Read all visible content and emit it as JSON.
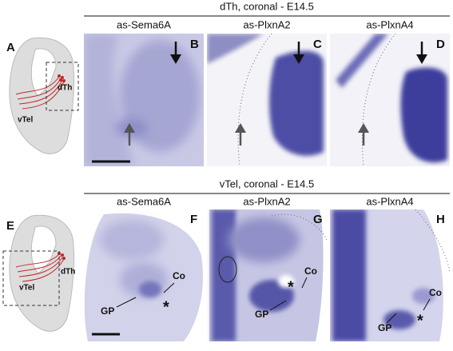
{
  "top": {
    "header": "dTh, coronal - E14.5",
    "schematic": {
      "letter": "A",
      "dth": "dTh",
      "vtel": "vTel"
    },
    "panels": [
      {
        "title": "as-Sema6A",
        "letter": "B"
      },
      {
        "title": "as-PlxnA2",
        "letter": "C"
      },
      {
        "title": "as-PlxnA4",
        "letter": "D"
      }
    ]
  },
  "bottom": {
    "header": "vTel, coronal - E14.5",
    "schematic": {
      "letter": "E",
      "dth": "dTh",
      "vtel": "vTel"
    },
    "panels": [
      {
        "title": "as-Sema6A",
        "letter": "F",
        "co": "Co",
        "gp": "GP",
        "star": "*"
      },
      {
        "title": "as-PlxnA2",
        "letter": "G",
        "co": "Co",
        "gp": "GP",
        "star": "*"
      },
      {
        "title": "as-PlxnA4",
        "letter": "H",
        "co": "Co",
        "gp": "GP",
        "star": "*"
      }
    ]
  }
}
